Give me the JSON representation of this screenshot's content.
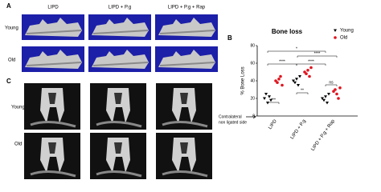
{
  "panels": {
    "a": {
      "label": "A",
      "columns": [
        "LIPD",
        "LIPD + P.g",
        "LIPD + P.g + Rap"
      ],
      "rows": [
        "Young",
        "Old"
      ]
    },
    "c": {
      "label": "C",
      "rows": [
        "Young",
        "Old"
      ]
    },
    "b": {
      "label": "B",
      "note": [
        "Contralateral",
        "non ligated side"
      ]
    }
  },
  "chart_data": {
    "type": "scatter",
    "title": "Bone loss",
    "y_label": "% Bone Loss",
    "categories": [
      "LIPD",
      "LIPD + P.g",
      "LIPD + P.g + Rap"
    ],
    "series": [
      {
        "name": "Young",
        "color": "#000000",
        "marker": "triangle",
        "values": [
          [
            20,
            25,
            15,
            22,
            18
          ],
          [
            40,
            38,
            42,
            35,
            45
          ],
          [
            20,
            18,
            22,
            15,
            25
          ]
        ]
      },
      {
        "name": "Old",
        "color": "#e0141e",
        "marker": "circle",
        "values": [
          [
            40,
            38,
            42,
            45,
            35
          ],
          [
            50,
            48,
            52,
            45,
            55
          ],
          [
            28,
            30,
            25,
            20,
            32
          ]
        ]
      }
    ],
    "ylim": [
      0,
      80
    ],
    "yticks": [
      0,
      20,
      40,
      60,
      80
    ],
    "annotations": [
      "***",
      "**",
      "ns",
      "****",
      "*",
      "****",
      "****"
    ]
  }
}
